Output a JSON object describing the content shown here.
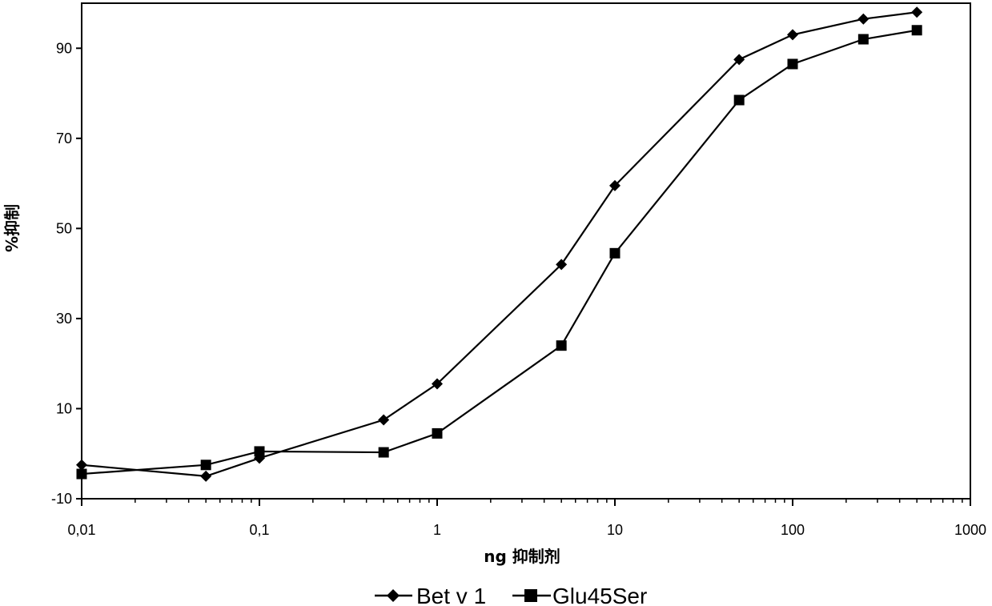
{
  "chart_data": {
    "type": "line",
    "title": "",
    "xlabel": "ng 抑制剂",
    "ylabel": "%抑制",
    "x_scale": "log",
    "xlim": [
      0.01,
      1000
    ],
    "ylim": [
      -10,
      100
    ],
    "x_ticks": [
      "0,01",
      "0,1",
      "1",
      "10",
      "100",
      "1000"
    ],
    "x_tick_values": [
      0.01,
      0.1,
      1,
      10,
      100,
      1000
    ],
    "y_ticks": [
      "-10",
      "10",
      "30",
      "50",
      "70",
      "90"
    ],
    "y_tick_values": [
      -10,
      10,
      30,
      50,
      70,
      90
    ],
    "grid": false,
    "legend_position": "bottom",
    "series": [
      {
        "name": "Bet v 1",
        "marker": "diamond",
        "color": "#000000",
        "x": [
          0.01,
          0.05,
          0.1,
          0.5,
          1,
          5,
          10,
          50,
          100,
          250,
          500
        ],
        "y": [
          -2.5,
          -5,
          -1,
          7.5,
          15.5,
          42,
          59.5,
          87.5,
          93,
          96.5,
          98
        ]
      },
      {
        "name": "Glu45Ser",
        "marker": "square",
        "color": "#000000",
        "x": [
          0.01,
          0.05,
          0.1,
          0.5,
          1,
          5,
          10,
          50,
          100,
          250,
          500
        ],
        "y": [
          -4.5,
          -2.5,
          0.5,
          0.3,
          4.5,
          24,
          44.5,
          78.5,
          86.5,
          92,
          94
        ]
      }
    ]
  }
}
